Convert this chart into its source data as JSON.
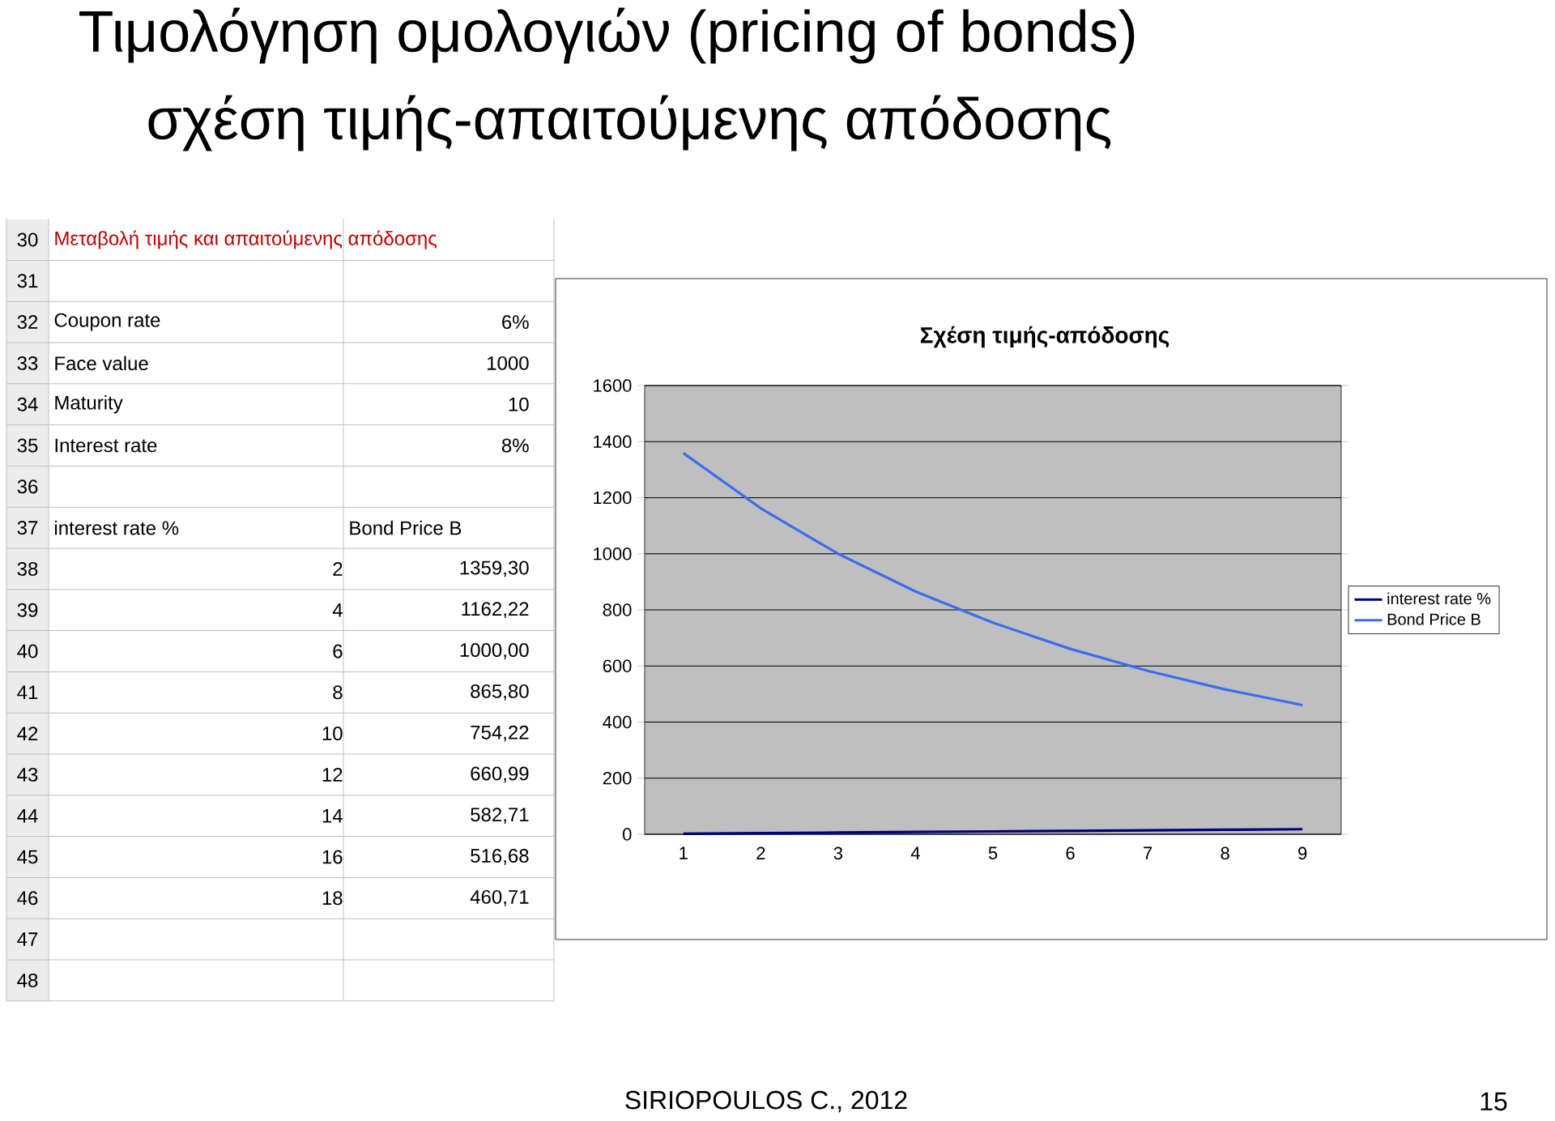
{
  "chart_data": {
    "type": "line",
    "title": "Τιμολόγηση ομολογιών (pricing of bonds)",
    "subtitle": "σχέση τιμής-απαιτούμενης απόδοσης",
    "categories": [
      "1",
      "2",
      "3",
      "4",
      "5",
      "6",
      "7",
      "8",
      "9"
    ],
    "series": [
      {
        "name": "interest rate %",
        "color": "#000080",
        "values": [
          2,
          4,
          6,
          8,
          10,
          12,
          14,
          16,
          18
        ]
      },
      {
        "name": "Bond Price B",
        "color": "#3a6df0",
        "values": [
          1359.3,
          1162.22,
          1000.0,
          865.8,
          754.22,
          660.99,
          582.71,
          516.68,
          460.71
        ]
      }
    ],
    "ylim": [
      0,
      1600
    ],
    "yticks": [
      0,
      200,
      400,
      600,
      800,
      1000,
      1200,
      1400,
      1600
    ],
    "grid": "y",
    "legend": "right",
    "marker": "none",
    "annotations": [
      "Σχέση τιμής-απόδοσης",
      "Μεταβολή τιμής και απαιτούμενης απόδοσης",
      "Coupon rate",
      "6%",
      "Face value",
      "1000",
      "Maturity",
      "10",
      "Interest rate",
      "8%",
      "interest rate %",
      "Bond Price B",
      "SIRIOPOULOS C., 2012",
      "15",
      "30",
      "31",
      "32",
      "33",
      "34",
      "35",
      "36",
      "37",
      "38",
      "39",
      "40",
      "41",
      "42",
      "43",
      "44",
      "45",
      "46",
      "47",
      "48",
      "2",
      "4",
      "6",
      "8",
      "10",
      "12",
      "14",
      "16",
      "18",
      "1359,30",
      "1162,22",
      "1000,00",
      "865,80",
      "754,22",
      "660,99",
      "582,71",
      "516,68",
      "460,71"
    ]
  }
}
